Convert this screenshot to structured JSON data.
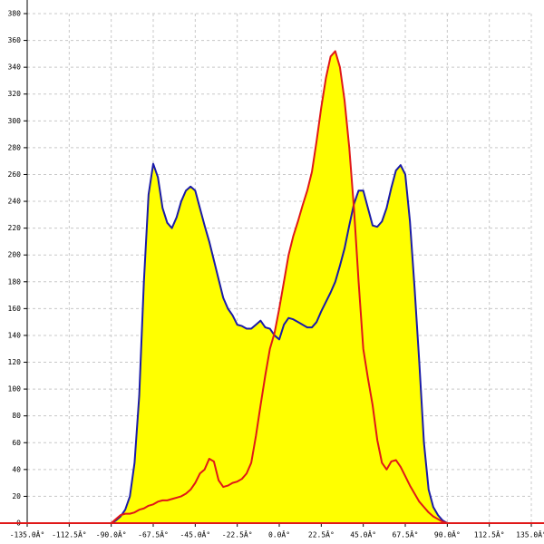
{
  "chart_data": {
    "type": "area-line",
    "x": [
      -90,
      -87.5,
      -85,
      -82.5,
      -80,
      -77.5,
      -75,
      -72.5,
      -70,
      -67.5,
      -65,
      -62.5,
      -60,
      -57.5,
      -55,
      -52.5,
      -50,
      -47.5,
      -45,
      -42.5,
      -40,
      -37.5,
      -35,
      -32.5,
      -30,
      -27.5,
      -25,
      -22.5,
      -20,
      -17.5,
      -15,
      -12.5,
      -10,
      -7.5,
      -5,
      -2.5,
      0,
      2.5,
      5,
      7.5,
      10,
      12.5,
      15,
      17.5,
      20,
      22.5,
      25,
      27.5,
      30,
      32.5,
      35,
      37.5,
      40,
      42.5,
      45,
      47.5,
      50,
      52.5,
      55,
      57.5,
      60,
      62.5,
      65,
      67.5,
      70,
      72.5,
      75,
      77.5,
      80,
      82.5,
      85,
      87.5,
      90
    ],
    "series": [
      {
        "color": "#1a1aa8",
        "values": [
          0,
          2,
          5,
          10,
          20,
          45,
          95,
          180,
          245,
          268,
          258,
          235,
          224,
          220,
          228,
          240,
          248,
          251,
          248,
          235,
          222,
          210,
          196,
          182,
          168,
          160,
          155,
          148,
          147,
          145,
          145,
          148,
          151,
          146,
          145,
          140,
          137,
          148,
          153,
          152,
          150,
          148,
          146,
          146,
          150,
          158,
          165,
          172,
          180,
          192,
          205,
          222,
          238,
          248,
          248,
          235,
          222,
          221,
          225,
          235,
          250,
          263,
          267,
          260,
          225,
          175,
          120,
          60,
          25,
          12,
          6,
          2,
          0
        ]
      },
      {
        "color": "#e01818",
        "values": [
          0,
          3,
          6,
          7,
          7,
          8,
          10,
          11,
          13,
          14,
          16,
          17,
          17,
          18,
          19,
          20,
          22,
          25,
          30,
          37,
          40,
          48,
          46,
          32,
          27,
          28,
          30,
          31,
          33,
          37,
          45,
          65,
          88,
          110,
          130,
          142,
          160,
          180,
          200,
          214,
          225,
          237,
          248,
          262,
          285,
          310,
          332,
          348,
          352,
          340,
          315,
          280,
          235,
          180,
          130,
          108,
          88,
          62,
          45,
          40,
          46,
          47,
          42,
          35,
          28,
          22,
          16,
          12,
          8,
          5,
          3,
          1,
          0
        ]
      }
    ],
    "fill_color": "#ffff00",
    "axis_color": "#e01818",
    "xlim": [
      -135,
      135
    ],
    "ylim": [
      0,
      380
    ],
    "xticks": [
      {
        "value": -135,
        "label": "-135.0Â°"
      },
      {
        "value": -112.5,
        "label": "-112.5Â°"
      },
      {
        "value": -90,
        "label": "-90.0Â°"
      },
      {
        "value": -67.5,
        "label": "-67.5Â°"
      },
      {
        "value": -45,
        "label": "-45.0Â°"
      },
      {
        "value": -22.5,
        "label": "-22.5Â°"
      },
      {
        "value": 0,
        "label": "0.0Â°"
      },
      {
        "value": 22.5,
        "label": "22.5Â°"
      },
      {
        "value": 45,
        "label": "45.0Â°"
      },
      {
        "value": 67.5,
        "label": "67.5Â°"
      },
      {
        "value": 90,
        "label": "90.0Â°"
      },
      {
        "value": 112.5,
        "label": "112.5Â°"
      },
      {
        "value": 135,
        "label": "135.0Â°"
      }
    ],
    "yticks": [
      0,
      20,
      40,
      60,
      80,
      100,
      120,
      140,
      160,
      180,
      200,
      220,
      240,
      260,
      280,
      300,
      320,
      340,
      360,
      380
    ],
    "grid": true
  }
}
